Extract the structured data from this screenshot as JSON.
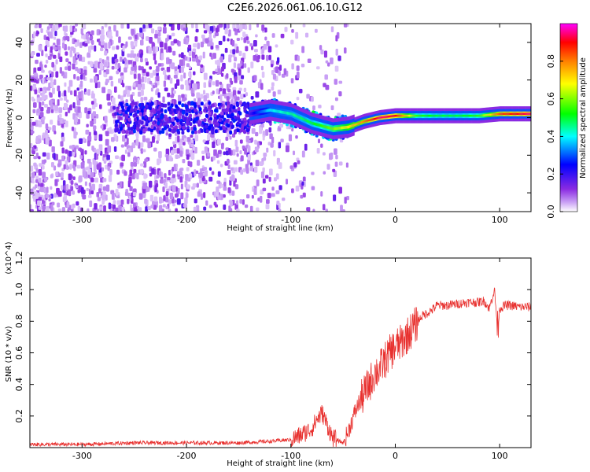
{
  "title": "C2E6.2026.061.06.10.G12",
  "chart_data": [
    {
      "type": "heatmap",
      "name": "spectrogram",
      "xlabel": "Height of straight line (km)",
      "ylabel": "Frequency (Hz)",
      "xlim": [
        -350,
        130
      ],
      "ylim": [
        -50,
        50
      ],
      "x_ticks": [
        -300,
        -200,
        -100,
        0,
        100
      ],
      "y_ticks": [
        -40,
        -20,
        0,
        20,
        40
      ],
      "colorbar": {
        "label": "Normalized spectral amplitude",
        "range": [
          0,
          1
        ],
        "ticks": [
          0.0,
          0.2,
          0.4,
          0.6,
          0.8
        ],
        "tick_labels": [
          "0.0",
          "0.2",
          "0.4",
          "0.6",
          "0.8"
        ],
        "colors": [
          "#ffffff",
          "#8a2be2",
          "#0000ff",
          "#00ffff",
          "#00ff00",
          "#ffff00",
          "#ff8000",
          "#ff0000",
          "#ff00ff"
        ]
      },
      "ridge": {
        "description": "dominant frequency trace",
        "x": [
          -140,
          -120,
          -100,
          -80,
          -60,
          -45,
          -30,
          -15,
          0,
          20,
          40,
          60,
          80,
          100,
          130
        ],
        "y": [
          2,
          4,
          2,
          -3,
          -6,
          -5,
          -2,
          0,
          1,
          1,
          1,
          1,
          1,
          2,
          2
        ],
        "peak_amplitude": [
          0.2,
          0.4,
          0.45,
          0.5,
          0.6,
          0.7,
          0.8,
          0.95,
          0.9,
          0.55,
          0.5,
          0.5,
          0.55,
          0.85,
          0.95
        ]
      }
    },
    {
      "type": "line",
      "name": "snr",
      "xlabel": "Height of straight line (km)",
      "ylabel": "SNR (10 * v/v)",
      "y_multiplier": "(x10^4)",
      "xlim": [
        -350,
        130
      ],
      "ylim": [
        0,
        1.2
      ],
      "x_ticks": [
        -300,
        -200,
        -100,
        0,
        100
      ],
      "y_ticks": [
        0.2,
        0.4,
        0.6,
        0.8,
        1.0,
        1.2
      ],
      "series": [
        {
          "name": "SNR",
          "color": "#e8312f",
          "x": [
            -350,
            -300,
            -250,
            -200,
            -170,
            -150,
            -120,
            -100,
            -90,
            -80,
            -75,
            -70,
            -60,
            -50,
            -45,
            -40,
            -35,
            -30,
            -25,
            -20,
            -15,
            -10,
            -5,
            0,
            5,
            10,
            15,
            20,
            25,
            30,
            35,
            40,
            50,
            60,
            70,
            80,
            85,
            90,
            95,
            98,
            100,
            105,
            110,
            120,
            130
          ],
          "values": [
            0.02,
            0.02,
            0.03,
            0.03,
            0.03,
            0.03,
            0.04,
            0.05,
            0.08,
            0.12,
            0.18,
            0.22,
            0.06,
            0.03,
            0.1,
            0.2,
            0.28,
            0.34,
            0.4,
            0.47,
            0.5,
            0.55,
            0.6,
            0.64,
            0.66,
            0.7,
            0.74,
            0.78,
            0.83,
            0.85,
            0.87,
            0.9,
            0.9,
            0.91,
            0.92,
            0.92,
            0.93,
            0.88,
            1.0,
            0.75,
            0.88,
            0.9,
            0.9,
            0.89,
            0.89
          ]
        }
      ]
    }
  ]
}
